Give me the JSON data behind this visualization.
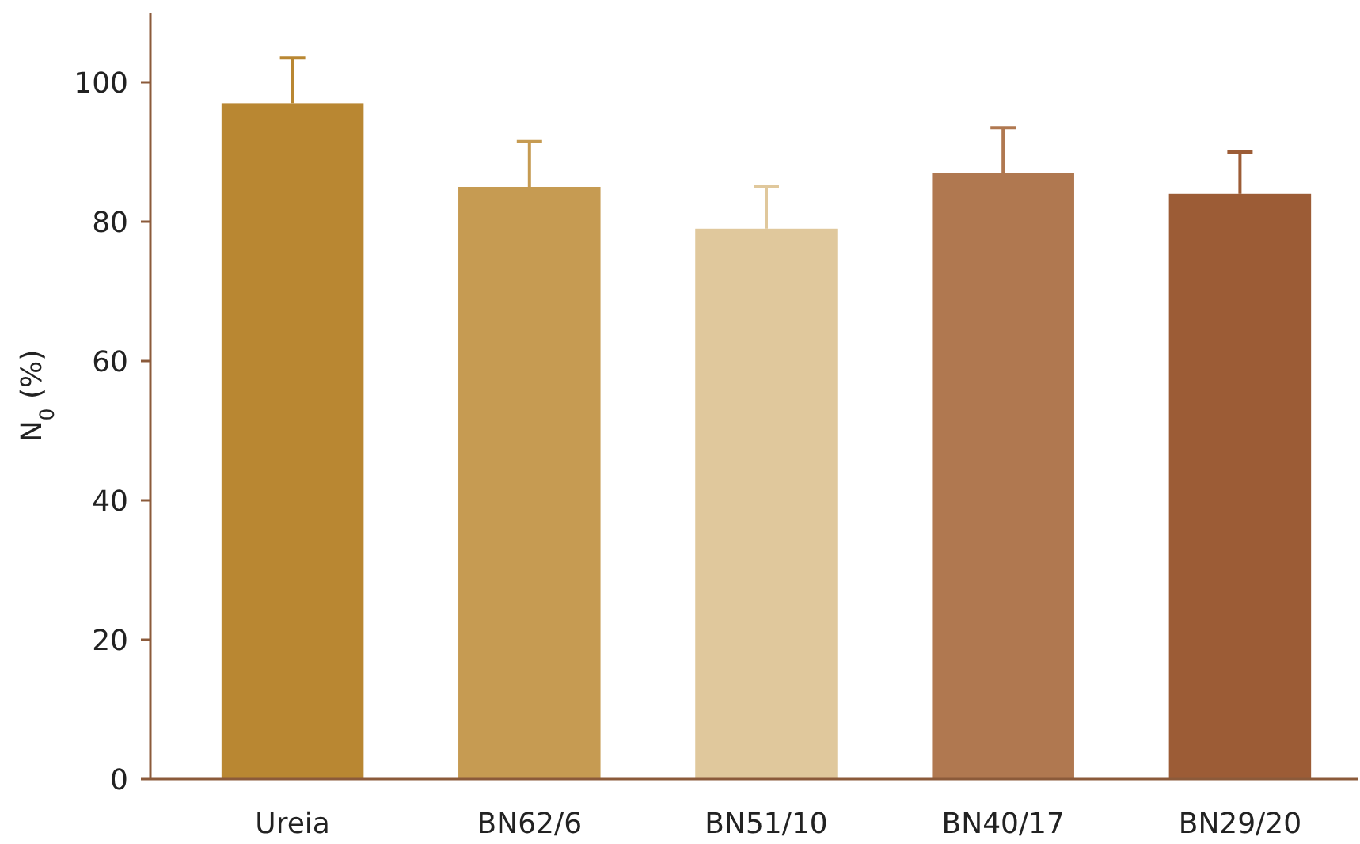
{
  "chart_data": {
    "type": "bar",
    "ylabel": "N$_{0}$ (%)",
    "categories": [
      "Ureia",
      "BN62/6",
      "BN51/10",
      "BN40/17",
      "BN29/20"
    ],
    "values": [
      97,
      85,
      79,
      87,
      84
    ],
    "errors": [
      6.5,
      6.5,
      6,
      6.5,
      6
    ],
    "colors": [
      "#b98732",
      "#c69b52",
      "#e0c89c",
      "#b07850",
      "#9c5c36"
    ],
    "ylim": [
      0,
      110
    ],
    "yticks": [
      0,
      20,
      40,
      60,
      80,
      100
    ],
    "grid": false
  }
}
